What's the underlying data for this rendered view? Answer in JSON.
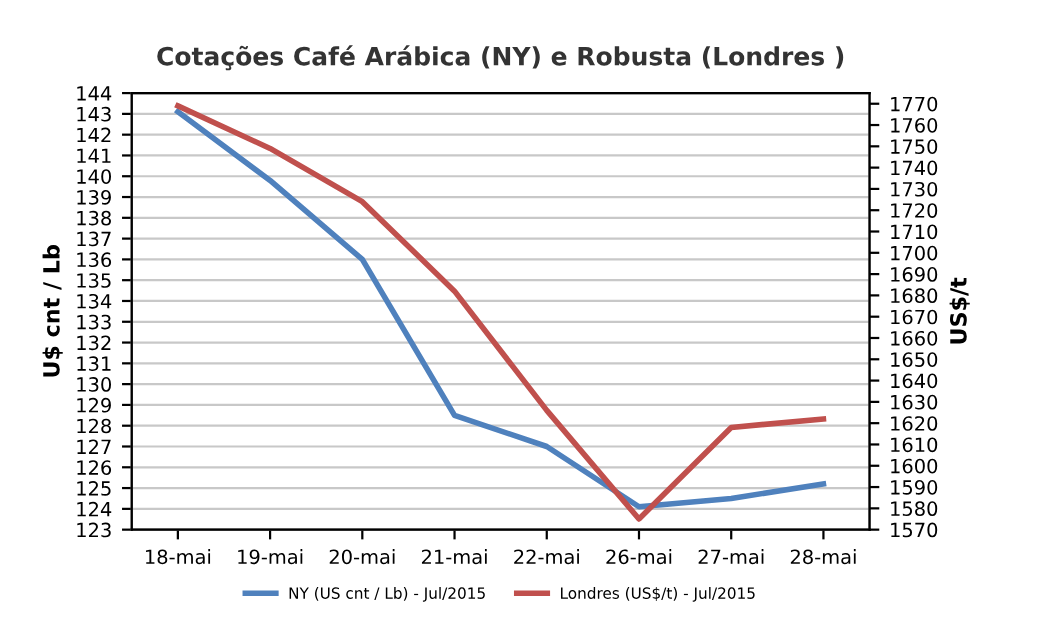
{
  "chart_data": {
    "type": "line",
    "title": "Cotações Café Arábica (NY) e Robusta (Londres )",
    "categories": [
      "18-mai",
      "19-mai",
      "20-mai",
      "21-mai",
      "22-mai",
      "26-mai",
      "27-mai",
      "28-mai"
    ],
    "series": [
      {
        "name": "NY (US cnt / Lb) - Jul/2015",
        "color": "#4f81bd",
        "values": [
          143.1,
          139.8,
          136.0,
          128.5,
          127.0,
          124.1,
          124.5,
          125.2
        ]
      },
      {
        "name": "Londres (US$/t) - Jul/2015",
        "color": "#c0504d",
        "axis": "y2",
        "values": [
          1769,
          1749,
          1724,
          1682,
          1626,
          1575,
          1618,
          1622
        ]
      }
    ],
    "ylabel": "U$ cnt / Lb",
    "y2label": "US$/t",
    "ylim": [
      123,
      144
    ],
    "yticks": [
      123,
      124,
      125,
      126,
      127,
      128,
      129,
      130,
      131,
      132,
      133,
      134,
      135,
      136,
      137,
      138,
      139,
      140,
      141,
      142,
      143,
      144
    ],
    "y2lim": [
      1570,
      1775
    ],
    "y2ticks": [
      1570,
      1580,
      1590,
      1600,
      1610,
      1620,
      1630,
      1640,
      1650,
      1660,
      1670,
      1680,
      1690,
      1700,
      1710,
      1720,
      1730,
      1740,
      1750,
      1760,
      1770
    ],
    "grid": "y",
    "legend": "bottom",
    "marker": "none",
    "line_style": "solid"
  }
}
